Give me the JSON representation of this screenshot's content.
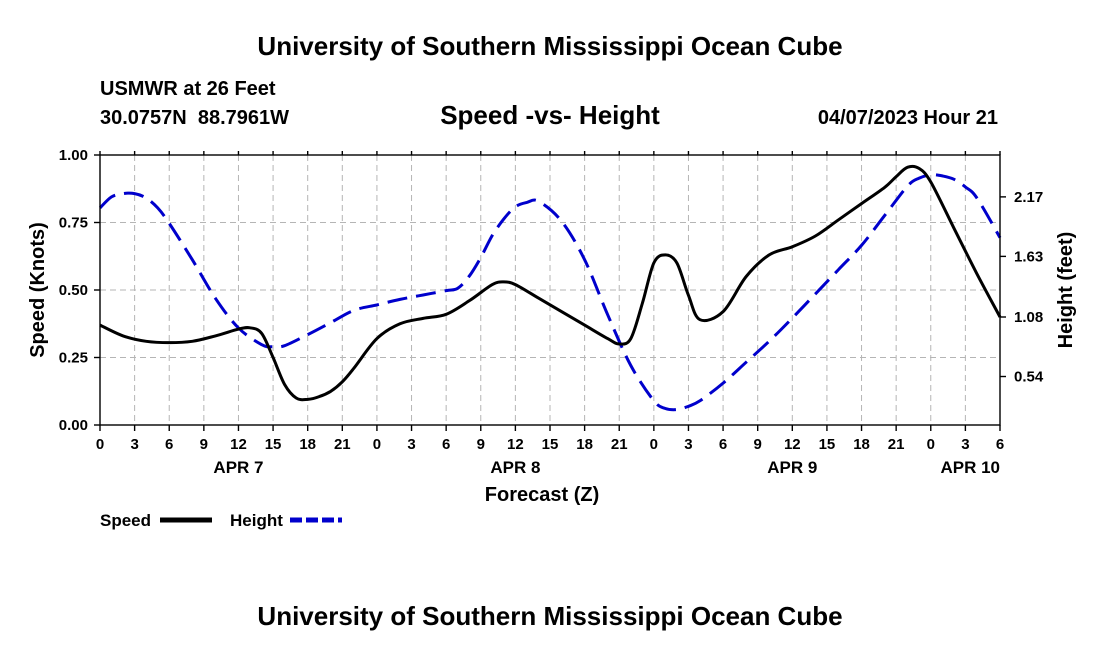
{
  "page": {
    "title_top": "University of Southern Mississippi Ocean Cube",
    "title_bottom": "University of Southern Mississippi Ocean Cube",
    "station": "USMWR at 26 Feet",
    "coords": "30.0757N  88.7961W",
    "datetime": "04/07/2023 Hour 21"
  },
  "chart_data": {
    "type": "line",
    "title": "Speed -vs- Height",
    "xlabel": "Forecast (Z)",
    "ylabel": "Speed (Knots)",
    "y2label": "Height (feet)",
    "xlim": [
      0,
      78
    ],
    "ylim": [
      0,
      1.0
    ],
    "y2lim": [
      0.1,
      2.55
    ],
    "grid": true,
    "x_ticks": [
      0,
      3,
      6,
      9,
      12,
      15,
      18,
      21,
      24,
      27,
      30,
      33,
      36,
      39,
      42,
      45,
      48,
      51,
      54,
      57,
      60,
      63,
      66,
      69,
      72,
      75,
      78
    ],
    "x_tick_labels": [
      "0",
      "3",
      "6",
      "9",
      "12",
      "15",
      "18",
      "21",
      "0",
      "3",
      "6",
      "9",
      "12",
      "15",
      "18",
      "21",
      "0",
      "3",
      "6",
      "9",
      "12",
      "15",
      "18",
      "21",
      "0",
      "3",
      "6"
    ],
    "day_labels": [
      {
        "x": 12,
        "label": "APR 7"
      },
      {
        "x": 36,
        "label": "APR 8"
      },
      {
        "x": 60,
        "label": "APR 9"
      },
      {
        "x": 78,
        "label": "APR 10"
      }
    ],
    "y_ticks": [
      0.0,
      0.25,
      0.5,
      0.75,
      1.0
    ],
    "y_tick_labels": [
      "0.00",
      "0.25",
      "0.50",
      "0.75",
      "1.00"
    ],
    "y2_ticks": [
      0.54,
      1.08,
      1.63,
      2.17
    ],
    "y2_tick_labels": [
      "0.54",
      "1.08",
      "1.63",
      "2.17"
    ],
    "series": [
      {
        "name": "Speed",
        "axis": "left",
        "color": "#000000",
        "style": "solid",
        "x": [
          0,
          2,
          4,
          6,
          8,
          10,
          12,
          13,
          14,
          15,
          16,
          17,
          18,
          19,
          20,
          21,
          22,
          24,
          26,
          28,
          30,
          32,
          34,
          35,
          36,
          38,
          40,
          42,
          44,
          45,
          46,
          47,
          48,
          49,
          50,
          51,
          52,
          54,
          56,
          58,
          60,
          62,
          64,
          66,
          68,
          69,
          70,
          71,
          72,
          74,
          76,
          78
        ],
        "values": [
          0.37,
          0.33,
          0.31,
          0.305,
          0.31,
          0.33,
          0.355,
          0.36,
          0.34,
          0.25,
          0.15,
          0.1,
          0.095,
          0.105,
          0.125,
          0.16,
          0.21,
          0.32,
          0.375,
          0.395,
          0.41,
          0.46,
          0.52,
          0.53,
          0.52,
          0.47,
          0.42,
          0.37,
          0.32,
          0.3,
          0.32,
          0.45,
          0.6,
          0.63,
          0.6,
          0.48,
          0.39,
          0.42,
          0.55,
          0.63,
          0.66,
          0.7,
          0.76,
          0.82,
          0.88,
          0.92,
          0.955,
          0.95,
          0.9,
          0.73,
          0.56,
          0.4
        ]
      },
      {
        "name": "Height",
        "axis": "right",
        "color": "#0000cc",
        "style": "dashed",
        "x": [
          0,
          1,
          2,
          3,
          4,
          5,
          6,
          8,
          10,
          12,
          14,
          15,
          16,
          18,
          20,
          22,
          24,
          26,
          28,
          30,
          31,
          32,
          33,
          34,
          35,
          36,
          37,
          38,
          40,
          42,
          44,
          46,
          48,
          49,
          50,
          51,
          52,
          54,
          56,
          58,
          60,
          62,
          64,
          66,
          68,
          70,
          71,
          72,
          73,
          74,
          75,
          76,
          78
        ],
        "values": [
          2.07,
          2.17,
          2.2,
          2.2,
          2.16,
          2.07,
          1.93,
          1.6,
          1.25,
          0.98,
          0.83,
          0.81,
          0.82,
          0.92,
          1.03,
          1.14,
          1.19,
          1.24,
          1.28,
          1.32,
          1.34,
          1.45,
          1.62,
          1.82,
          1.97,
          2.08,
          2.12,
          2.13,
          1.95,
          1.6,
          1.1,
          0.64,
          0.32,
          0.25,
          0.24,
          0.27,
          0.32,
          0.48,
          0.67,
          0.86,
          1.07,
          1.29,
          1.51,
          1.73,
          2.0,
          2.27,
          2.34,
          2.37,
          2.36,
          2.33,
          2.26,
          2.16,
          1.8
        ]
      }
    ],
    "legend": [
      {
        "label": "Speed",
        "color": "#000000",
        "style": "solid"
      },
      {
        "label": "Height",
        "color": "#0000cc",
        "style": "dashed"
      }
    ]
  }
}
